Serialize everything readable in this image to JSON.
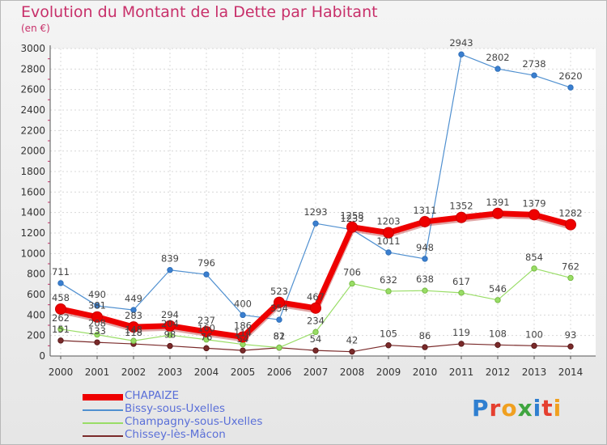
{
  "title": "Evolution du Montant de la Dette par Habitant",
  "subtitle": "(en €)",
  "logo": {
    "text": "Proxiti",
    "letter_colors": [
      "#2f7fd0",
      "#e53f2f",
      "#f0a020",
      "#3fa53f",
      "#2f7fd0",
      "#e53f2f",
      "#f0a020"
    ]
  },
  "chart_data": {
    "type": "line",
    "x": [
      "2000",
      "2001",
      "2002",
      "2003",
      "2004",
      "2005",
      "2006",
      "2007",
      "2008",
      "2009",
      "2010",
      "2011",
      "2012",
      "2013",
      "2014"
    ],
    "ylim": [
      0,
      3000
    ],
    "yticks": [
      "0",
      "200",
      "400",
      "600",
      "800",
      "1000",
      "1200",
      "1400",
      "1600",
      "1800",
      "2000",
      "2200",
      "2400",
      "2600",
      "2800",
      "3000"
    ],
    "grid": true,
    "legend_position": "bottom-left",
    "series": [
      {
        "name": "CHAPAIZE",
        "color": "#ee0000",
        "values": [
          458,
          381,
          283,
          294,
          237,
          186,
          523,
          467,
          1258,
          1203,
          1311,
          1352,
          1391,
          1379,
          1282
        ]
      },
      {
        "name": "Bissy-sous-Uxelles",
        "color": "#5090d0",
        "values": [
          711,
          490,
          449,
          839,
          796,
          400,
          354,
          1293,
          1233,
          1011,
          948,
          2943,
          2802,
          2738,
          2620
        ]
      },
      {
        "name": "Champagny-sous-Uxelles",
        "color": "#99dd66",
        "values": [
          262,
          208,
          148,
          204,
          160,
          114,
          82,
          234,
          706,
          632,
          638,
          617,
          546,
          854,
          762
        ]
      },
      {
        "name": "Chissey-lès-Mâcon",
        "color": "#7a2a2a",
        "values": [
          151,
          133,
          118,
          98,
          76,
          54,
          81,
          54,
          42,
          105,
          86,
          119,
          108,
          100,
          93
        ]
      }
    ]
  }
}
